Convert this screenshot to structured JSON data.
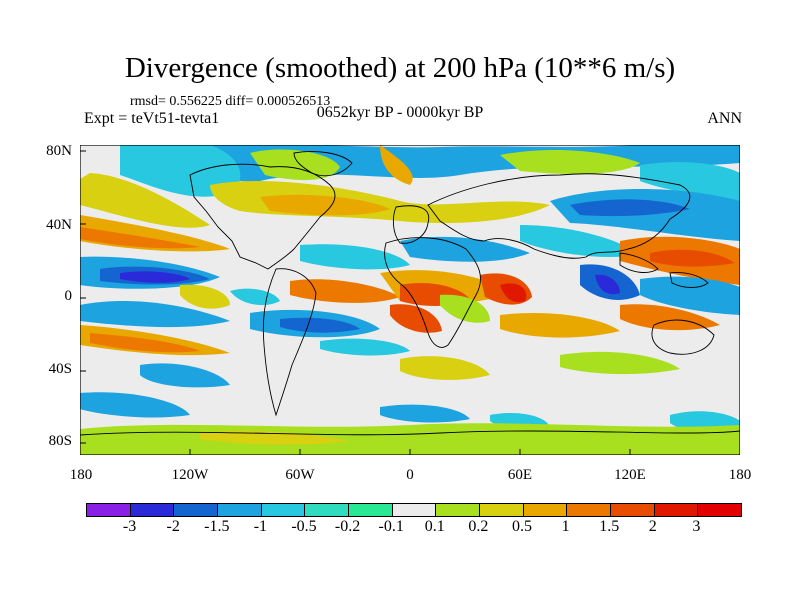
{
  "title": "Divergence (smoothed) at 200 hPa (10**6 m/s)",
  "stats": "rmsd= 0.556225 diff= 0.000526513",
  "experiment": "Expt = teVt51-tevta1",
  "period": "0652kyr BP - 0000kyr BP",
  "season": "ANN",
  "lat_labels": [
    "80N",
    "40N",
    "0",
    "40S",
    "80S"
  ],
  "lon_labels": [
    "180",
    "120W",
    "60W",
    "0",
    "60E",
    "120E",
    "180"
  ],
  "colorbar": {
    "labels": [
      "-3",
      "-2",
      "-1.5",
      "-1",
      "-0.5",
      "-0.2",
      "-0.1",
      "0.1",
      "0.2",
      "0.5",
      "1",
      "1.5",
      "2",
      "3"
    ],
    "colors": [
      "#8a1fe6",
      "#2a2ad8",
      "#1565d0",
      "#1ca3e0",
      "#28c8e0",
      "#30dcc0",
      "#28e894",
      "#ececec",
      "#a8e020",
      "#d8d010",
      "#e8a800",
      "#ec7800",
      "#e84c00",
      "#e01800",
      "#e20000"
    ]
  }
}
